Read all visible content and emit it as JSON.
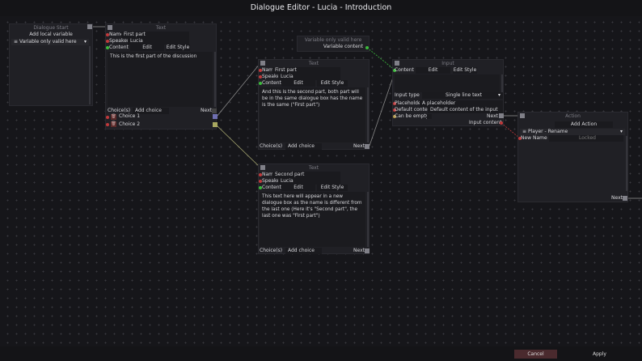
{
  "window": {
    "title": "Dialogue Editor - Lucia - Introduction"
  },
  "footer": {
    "cancel": "Cancel",
    "apply": "Apply",
    "cancel_color": "#4a2a2e"
  },
  "start_node": {
    "title": "Dialogue Start",
    "add_variable": "Add local variable",
    "variable": "Variable only valid here"
  },
  "variable_node": {
    "title": "Variable only valid here",
    "output": "Variable content"
  },
  "text_nodes": [
    {
      "title": "Text",
      "name_label": "Name",
      "name": "First part",
      "speaker_label": "Speaker",
      "speaker": "Lucia",
      "content_label": "Content",
      "edit": "Edit",
      "edit_style": "Edit Style",
      "content": "This is the first part of the discussion",
      "choices_label": "Choice(s)",
      "add_choice": "Add choice",
      "next": "Next",
      "choices": [
        "Choice 1",
        "Choice 2"
      ]
    },
    {
      "title": "Text",
      "name_label": "Name",
      "name": "First part",
      "speaker_label": "Speaker",
      "speaker": "Lucia",
      "content_label": "Content",
      "edit": "Edit",
      "edit_style": "Edit Style",
      "content": "And this is the second part, both part will be in the same dialogue box has the name is the same (\"First part\")",
      "choices_label": "Choice(s)",
      "add_choice": "Add choice",
      "next": "Next"
    },
    {
      "title": "Text",
      "name_label": "Name",
      "name": "Second part",
      "speaker_label": "Speaker",
      "speaker": "Lucia",
      "content_label": "Content",
      "edit": "Edit",
      "edit_style": "Edit Style",
      "content": "This text here will appear in a new dialogue box as the name is different from the last one (Here it's \"Second part\", the last one was \"First part\")",
      "choices_label": "Choice(s)",
      "add_choice": "Add choice",
      "next": "Next"
    }
  ],
  "input_node": {
    "title": "Input",
    "content_label": "Content",
    "edit": "Edit",
    "edit_style": "Edit Style",
    "input_type_label": "Input type",
    "input_type": "Single line text",
    "placeholder_label": "Placeholder",
    "placeholder": "A placeholder",
    "default_label": "Default content",
    "default": "Default content of the input",
    "can_be_empty": "Can be empty",
    "next": "Next",
    "output": "Input content"
  },
  "action_node": {
    "title": "Action",
    "add_action": "Add Action",
    "action": "Player - Rename",
    "param_label": "New Name",
    "param_value": "Locked",
    "next": "Next"
  },
  "colors": {
    "choice1": "#6f6fb0",
    "choice2": "#a8a860",
    "variable_link": "#3bbb3b",
    "input_link": "#c0393b"
  }
}
